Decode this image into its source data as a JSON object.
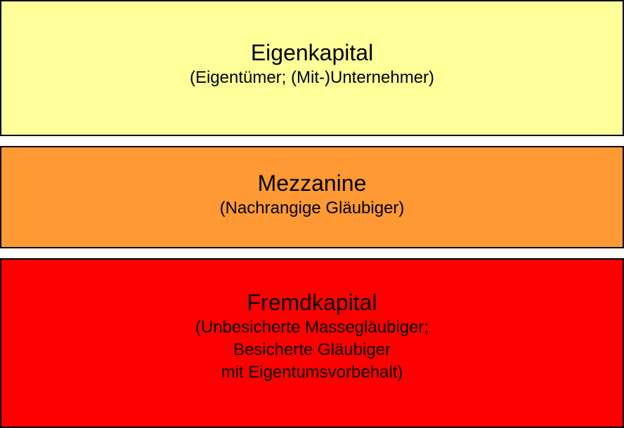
{
  "boxes": [
    {
      "title": "Eigenkapital",
      "lines": [
        "(Eigentümer; (Mit-)Unternehmer)"
      ],
      "color": "#FFFF99"
    },
    {
      "title": "Mezzanine",
      "lines": [
        "(Nachrangige Gläubiger)"
      ],
      "color": "#FF9933"
    },
    {
      "title": "Fremdkapital",
      "lines": [
        "(Unbesicherte Massegläubiger;",
        "Besicherte Gläubiger",
        "mit Eigentumsvorbehalt)"
      ],
      "color": "#FF0000"
    }
  ]
}
